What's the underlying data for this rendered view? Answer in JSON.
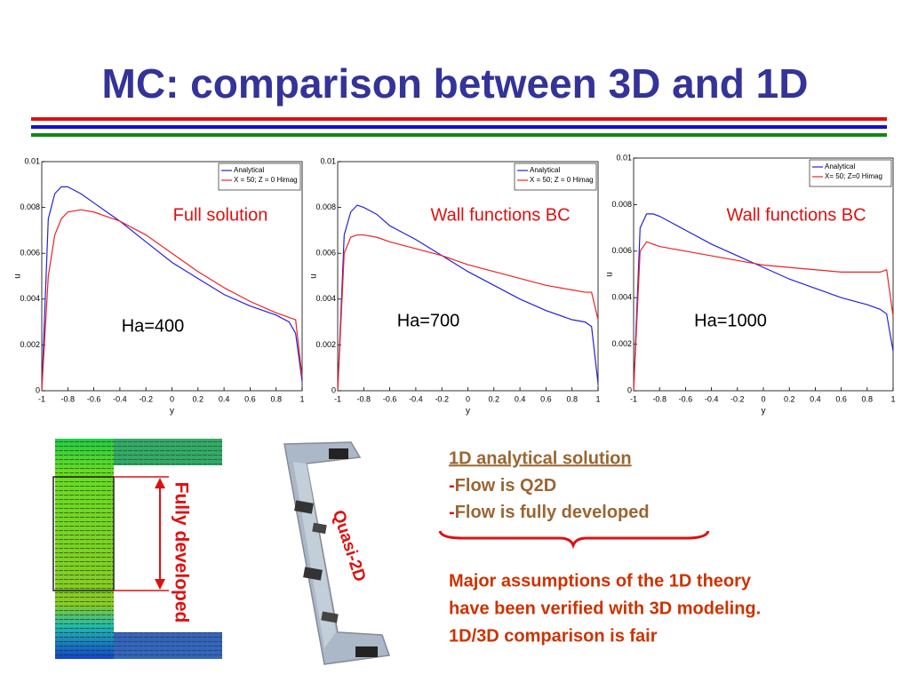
{
  "slide": {
    "title": "MC: comparison between 3D and 1D",
    "left_image_label": "Fully developed",
    "middle_image_label": "Quasi-2D",
    "summary": {
      "heading": "1D analytical solution",
      "bullets": [
        {
          "marker": "-",
          "text": "Flow is Q2D"
        },
        {
          "marker": "-",
          "text": "Flow is fully developed"
        }
      ],
      "conclusion": [
        "Major assumptions of the 1D theory",
        "have been verified with 3D modeling.",
        "1D/3D comparison is fair"
      ]
    }
  },
  "chart_data": [
    {
      "type": "line",
      "xlabel": "y",
      "ylabel": "u",
      "annotations": [
        "Full solution",
        "Ha=400"
      ],
      "x": [
        -1,
        -0.95,
        -0.9,
        -0.85,
        -0.8,
        -0.7,
        -0.6,
        -0.4,
        -0.2,
        0,
        0.2,
        0.4,
        0.6,
        0.8,
        0.9,
        0.95,
        1
      ],
      "series": [
        {
          "name": "Analytical",
          "color": "#2222dd",
          "values": [
            0,
            0.0075,
            0.0086,
            0.0089,
            0.0089,
            0.0086,
            0.0082,
            0.0074,
            0.0065,
            0.0056,
            0.0049,
            0.0042,
            0.0037,
            0.0033,
            0.003,
            0.0025,
            0.0004
          ]
        },
        {
          "name": "X = 50; Z = 0 Himag",
          "color": "#ee2222",
          "values": [
            0,
            0.005,
            0.0068,
            0.0075,
            0.0078,
            0.0079,
            0.0078,
            0.0074,
            0.0068,
            0.006,
            0.0052,
            0.0045,
            0.0039,
            0.0034,
            0.0032,
            0.0031,
            0.0006
          ]
        }
      ],
      "xlim": [
        -1,
        1
      ],
      "xticks": [
        -1,
        -0.8,
        -0.6,
        -0.4,
        -0.2,
        0,
        0.2,
        0.4,
        0.6,
        0.8,
        1
      ],
      "ylim": [
        0,
        0.01
      ],
      "yticks": [
        0,
        0.002,
        0.004,
        0.006,
        0.008,
        0.01
      ],
      "legend": "upper right"
    },
    {
      "type": "line",
      "xlabel": "y",
      "ylabel": "u",
      "annotations": [
        "Wall functions BC",
        "Ha=700"
      ],
      "x": [
        -1,
        -0.95,
        -0.9,
        -0.85,
        -0.8,
        -0.7,
        -0.6,
        -0.4,
        -0.2,
        0,
        0.2,
        0.4,
        0.6,
        0.8,
        0.9,
        0.95,
        1
      ],
      "series": [
        {
          "name": "Analytical",
          "color": "#2222dd",
          "values": [
            0,
            0.0068,
            0.0078,
            0.0081,
            0.008,
            0.0077,
            0.0072,
            0.0066,
            0.0059,
            0.0052,
            0.0046,
            0.004,
            0.0035,
            0.0031,
            0.003,
            0.0028,
            0.0003
          ]
        },
        {
          "name": "X = 50; Z = 0 Himag",
          "color": "#ee2222",
          "values": [
            0,
            0.006,
            0.0067,
            0.0068,
            0.0068,
            0.0067,
            0.0065,
            0.0062,
            0.0059,
            0.0055,
            0.0052,
            0.0049,
            0.0046,
            0.0044,
            0.0043,
            0.0043,
            0.0031
          ]
        }
      ],
      "xlim": [
        -1,
        1
      ],
      "xticks": [
        -1,
        -0.8,
        -0.6,
        -0.4,
        -0.2,
        0,
        0.2,
        0.4,
        0.6,
        0.8,
        1
      ],
      "ylim": [
        0,
        0.01
      ],
      "yticks": [
        0,
        0.002,
        0.004,
        0.006,
        0.008,
        0.01
      ],
      "legend": "upper right"
    },
    {
      "type": "line",
      "xlabel": "y",
      "ylabel": "u",
      "annotations": [
        "Wall functions BC",
        "Ha=1000"
      ],
      "x": [
        -1,
        -0.95,
        -0.9,
        -0.85,
        -0.8,
        -0.7,
        -0.6,
        -0.4,
        -0.2,
        0,
        0.2,
        0.4,
        0.6,
        0.8,
        0.9,
        0.95,
        1
      ],
      "series": [
        {
          "name": "Analytical",
          "color": "#2222dd",
          "values": [
            0,
            0.007,
            0.0076,
            0.0076,
            0.0075,
            0.0072,
            0.0069,
            0.0063,
            0.0058,
            0.0053,
            0.0048,
            0.0044,
            0.004,
            0.0037,
            0.0035,
            0.0033,
            0.0017
          ]
        },
        {
          "name": "X= 50; Z=0 Himag",
          "color": "#ee2222",
          "values": [
            0,
            0.006,
            0.0064,
            0.0063,
            0.0062,
            0.0061,
            0.006,
            0.0058,
            0.0056,
            0.0054,
            0.0053,
            0.0052,
            0.0051,
            0.0051,
            0.0051,
            0.0052,
            0.0032
          ]
        }
      ],
      "xlim": [
        -1,
        1
      ],
      "xticks": [
        -1,
        -0.8,
        -0.6,
        -0.4,
        -0.2,
        0,
        0.2,
        0.4,
        0.6,
        0.8,
        1
      ],
      "ylim": [
        0,
        0.01
      ],
      "yticks": [
        0,
        0.002,
        0.004,
        0.006,
        0.008,
        0.01
      ],
      "legend": "upper right"
    }
  ]
}
